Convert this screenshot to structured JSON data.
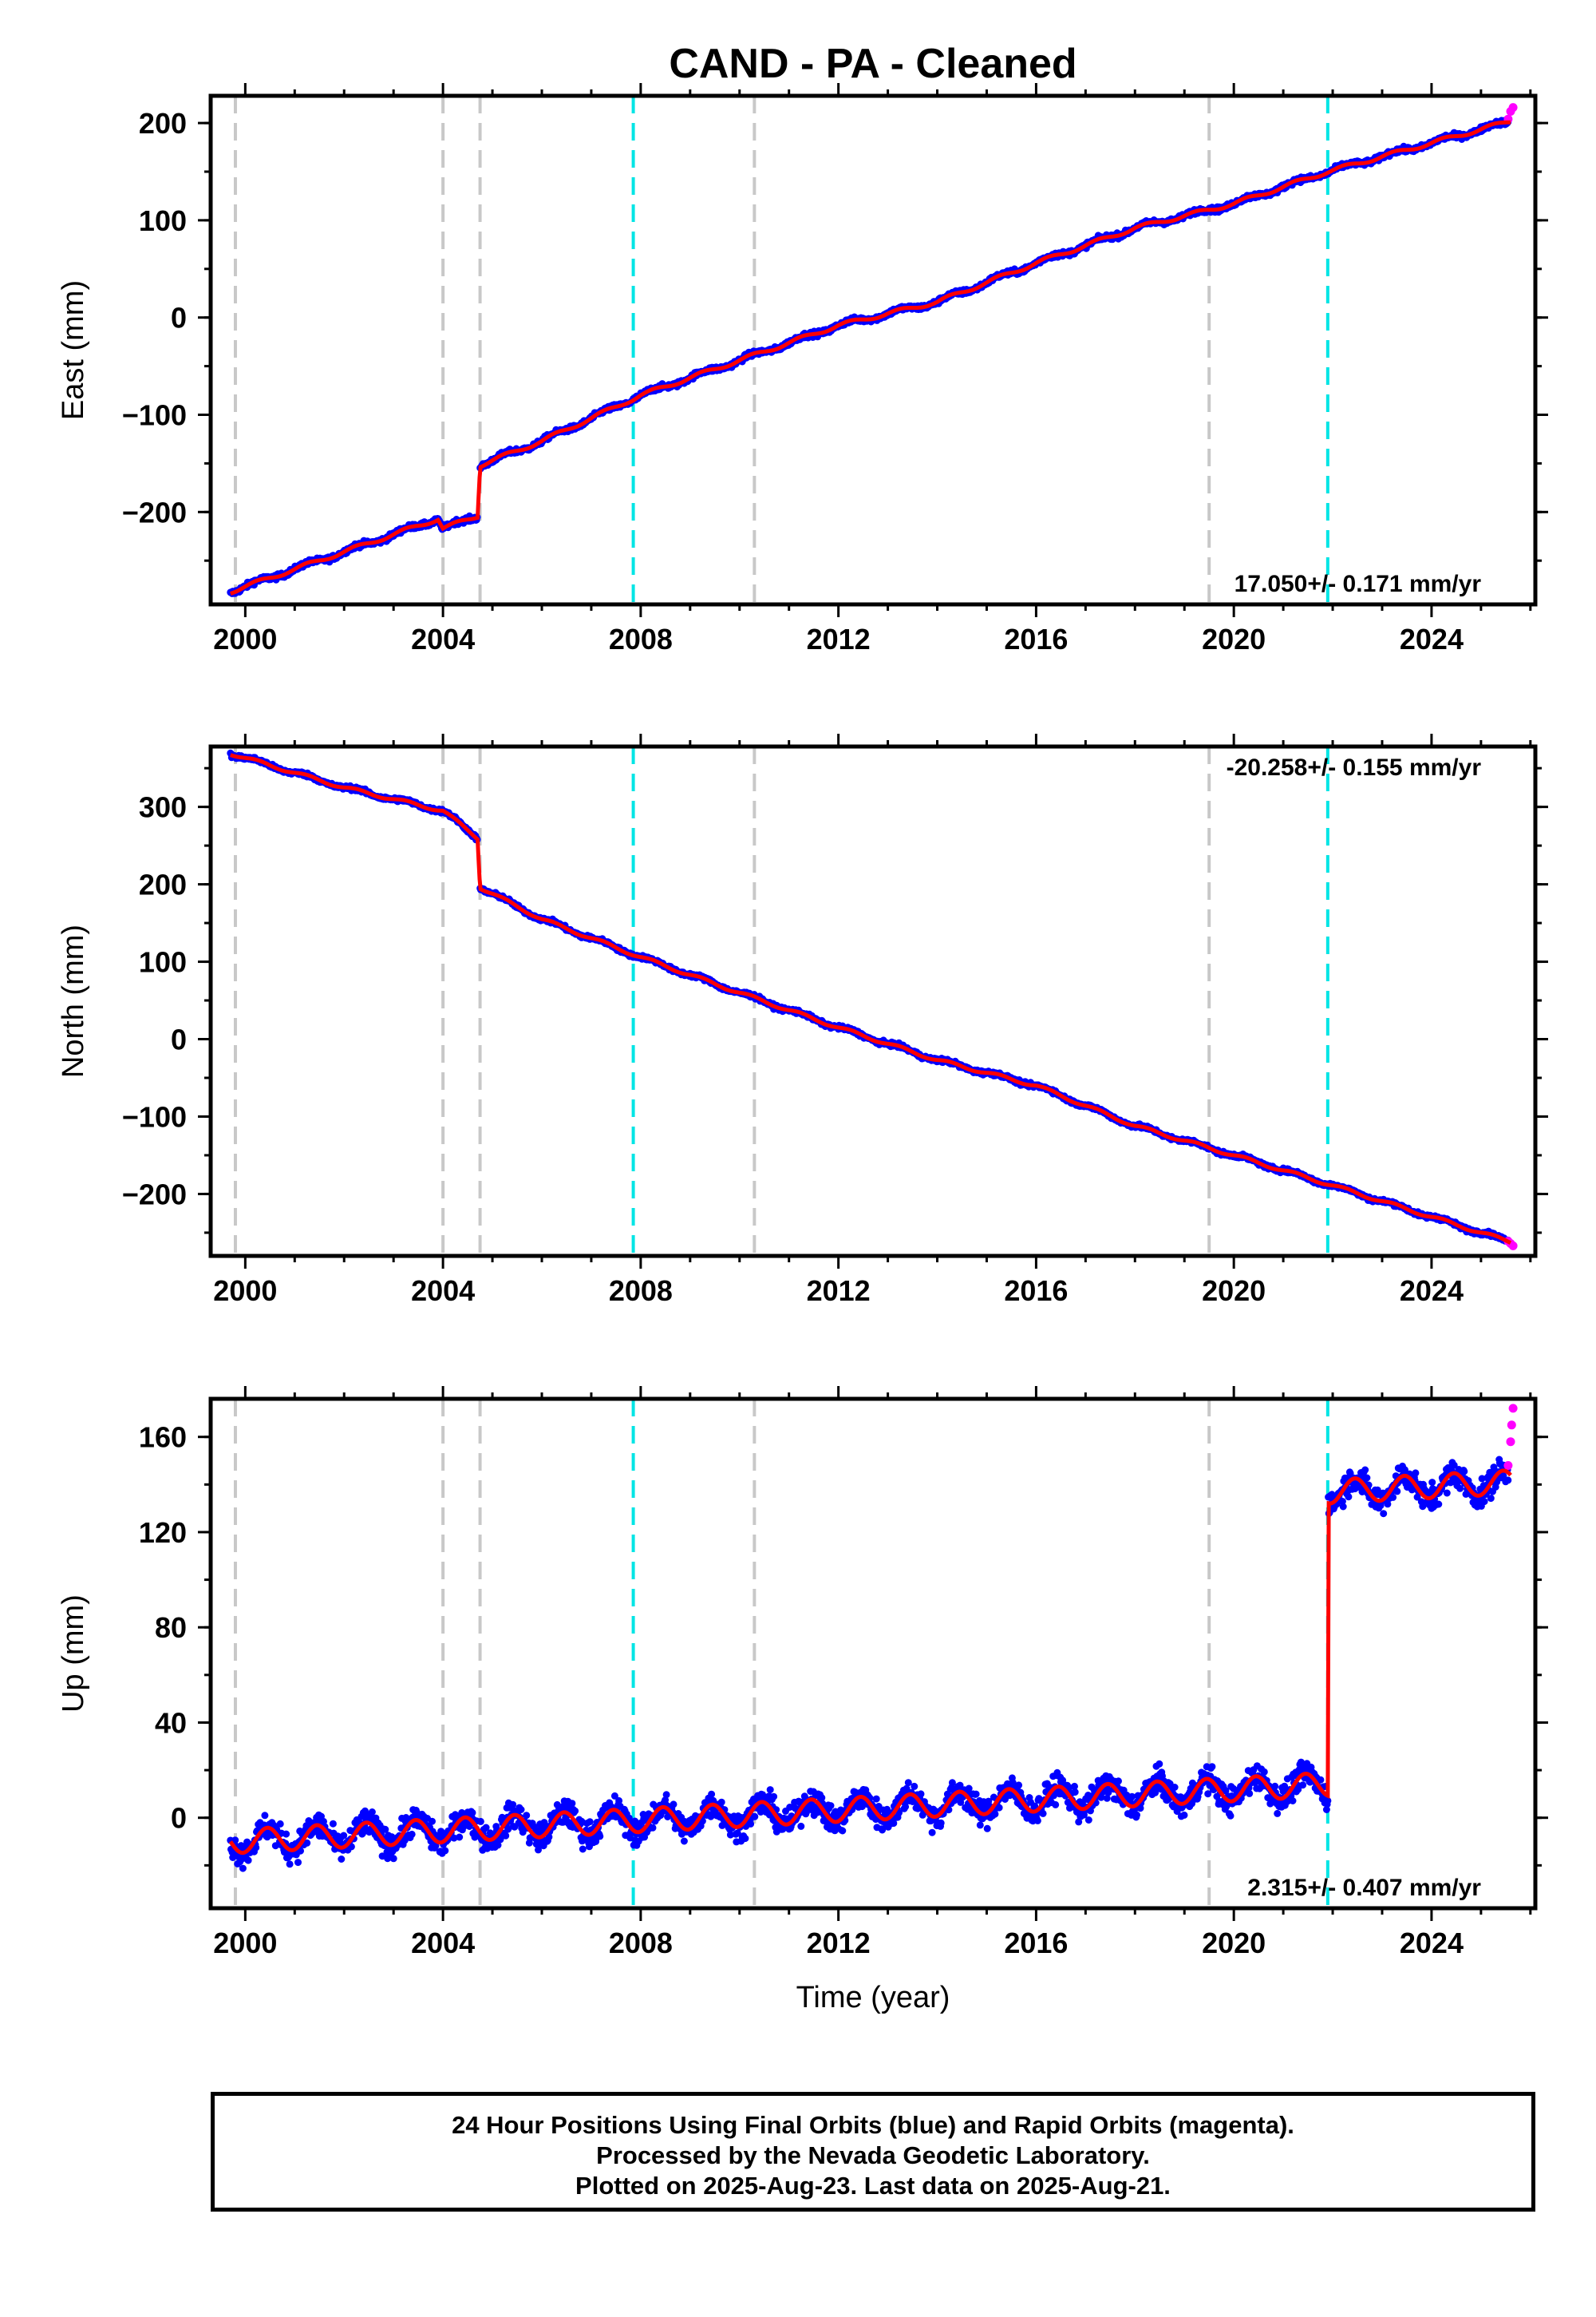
{
  "title": "CAND  - PA - Cleaned",
  "footer": {
    "line1": "24 Hour Positions Using Final Orbits (blue) and Rapid Orbits (magenta).",
    "line2": "Processed by the Nevada Geodetic Laboratory.",
    "line3": "Plotted on 2025-Aug-23. Last data on 2025-Aug-21."
  },
  "colors": {
    "final": "#0000ff",
    "rapid": "#ff00ff",
    "model": "#ff0000",
    "equipment_change": "#c8c8c8",
    "earthquake": "#00e5e5"
  },
  "chart_data": [
    {
      "type": "scatter",
      "panel": "East",
      "ylabel": "East (mm)",
      "xlim": [
        1999.3,
        2026.1
      ],
      "ylim": [
        -295,
        228
      ],
      "xticks": [
        "2000",
        "2004",
        "2008",
        "2012",
        "2016",
        "2020",
        "2024"
      ],
      "yticks": [
        "−200",
        "−100",
        "0",
        "100",
        "200"
      ],
      "rate_label": "17.050+/- 0.171 mm/yr",
      "rate_position": "bottom-right",
      "grey_lines": [
        1999.8,
        2004.0,
        2004.75,
        2010.3,
        2019.5
      ],
      "cyan_lines": [
        2007.85,
        2021.9
      ],
      "model": [
        [
          1999.7,
          -282
        ],
        [
          2003.9,
          -207
        ],
        [
          2004.0,
          -217
        ],
        [
          2004.7,
          -204
        ],
        [
          2004.75,
          -152
        ],
        [
          2006,
          -127
        ],
        [
          2008,
          -80
        ],
        [
          2010,
          -44
        ],
        [
          2012,
          -8
        ],
        [
          2014,
          16
        ],
        [
          2016,
          56
        ],
        [
          2018,
          92
        ],
        [
          2020,
          117
        ],
        [
          2021.9,
          150
        ],
        [
          2025.6,
          202
        ]
      ],
      "rapid_end": [
        [
          2025.55,
          204
        ],
        [
          2025.6,
          212
        ],
        [
          2025.65,
          216
        ]
      ]
    },
    {
      "type": "scatter",
      "panel": "North",
      "ylabel": "North (mm)",
      "xlim": [
        1999.3,
        2026.1
      ],
      "ylim": [
        -280,
        378
      ],
      "xticks": [
        "2000",
        "2004",
        "2008",
        "2012",
        "2016",
        "2020",
        "2024"
      ],
      "yticks": [
        "−200",
        "−100",
        "0",
        "100",
        "200",
        "300"
      ],
      "rate_label": "-20.258+/- 0.155 mm/yr",
      "rate_position": "top-right",
      "grey_lines": [
        1999.8,
        2004.0,
        2004.75,
        2010.3,
        2019.5
      ],
      "cyan_lines": [
        2007.85,
        2021.9
      ],
      "model": [
        [
          1999.7,
          369
        ],
        [
          2002,
          325
        ],
        [
          2004.0,
          295
        ],
        [
          2004.7,
          260
        ],
        [
          2004.75,
          196
        ],
        [
          2006,
          155
        ],
        [
          2008,
          106
        ],
        [
          2010,
          60
        ],
        [
          2012,
          15
        ],
        [
          2014,
          -27
        ],
        [
          2016,
          -60
        ],
        [
          2018,
          -112
        ],
        [
          2020,
          -150
        ],
        [
          2021.9,
          -187
        ],
        [
          2025.6,
          -262
        ]
      ],
      "rapid_end": [
        [
          2025.55,
          -261
        ],
        [
          2025.6,
          -264
        ],
        [
          2025.65,
          -267
        ]
      ]
    },
    {
      "type": "scatter",
      "panel": "Up",
      "ylabel": "Up (mm)",
      "xlabel": "Time (year)",
      "xlim": [
        1999.3,
        2026.1
      ],
      "ylim": [
        -38,
        176
      ],
      "xticks": [
        "2000",
        "2004",
        "2008",
        "2012",
        "2016",
        "2020",
        "2024"
      ],
      "yticks": [
        "0",
        "40",
        "80",
        "120",
        "160"
      ],
      "rate_label": "2.315+/- 0.407 mm/yr",
      "rate_position": "bottom-right",
      "grey_lines": [
        1999.8,
        2004.0,
        2004.75,
        2010.3,
        2019.5
      ],
      "cyan_lines": [
        2007.85,
        2021.9
      ],
      "model_trend": {
        "start_year": 1999.7,
        "start_value": -10,
        "end_year": 2021.9,
        "end_value": 14,
        "annual_amplitude": 5
      },
      "offset_after": {
        "year": 2021.9,
        "value": 137
      },
      "rapid_end": [
        [
          2025.55,
          148
        ],
        [
          2025.6,
          158
        ],
        [
          2025.62,
          165
        ],
        [
          2025.65,
          172
        ]
      ]
    }
  ]
}
